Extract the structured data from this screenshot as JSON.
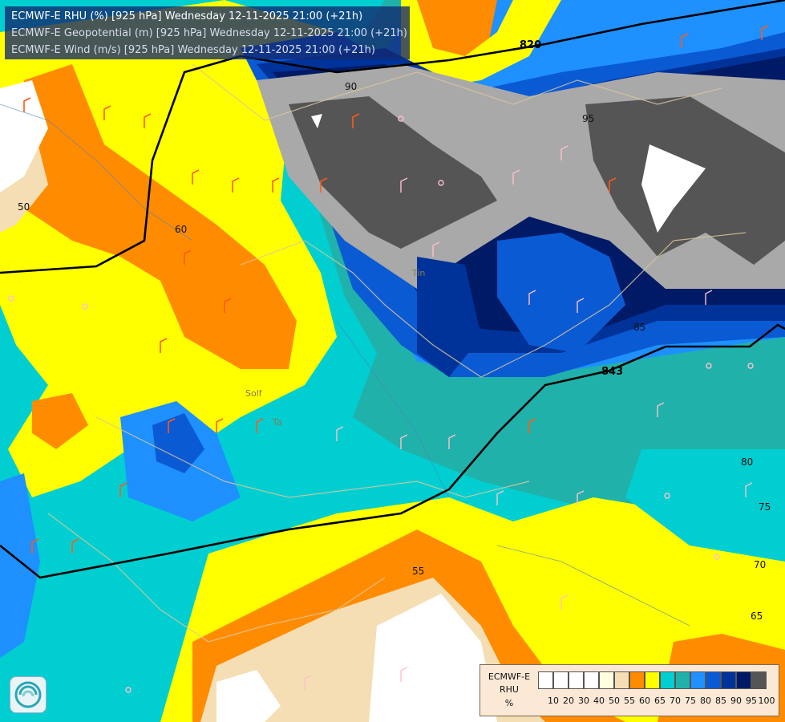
{
  "header": {
    "line1": "ECMWF-E RHU (%) [925 hPa] Wednesday 12-11-2025 21:00 (+21h)",
    "line2": "ECMWF-E Geopotential (m) [925 hPa] Wednesday 12-11-2025 21:00 (+21h)",
    "line3": "ECMWF-E Wind (m/s) [925 hPa] Wednesday 12-11-2025 21:00 (+21h)"
  },
  "legend": {
    "title1": "ECMWF-E",
    "title2": "RHU",
    "unit": "%",
    "bins": [
      {
        "label": "10",
        "color": "#ffffff"
      },
      {
        "label": "20",
        "color": "#ffffff"
      },
      {
        "label": "30",
        "color": "#ffffff"
      },
      {
        "label": "40",
        "color": "#ffffff"
      },
      {
        "label": "50",
        "color": "#ffffe0"
      },
      {
        "label": "55",
        "color": "#f5deb3"
      },
      {
        "label": "60",
        "color": "#ff8c00"
      },
      {
        "label": "65",
        "color": "#ffff00"
      },
      {
        "label": "70",
        "color": "#00ced1"
      },
      {
        "label": "75",
        "color": "#20b2aa"
      },
      {
        "label": "80",
        "color": "#1e90ff"
      },
      {
        "label": "85",
        "color": "#0a5ad4"
      },
      {
        "label": "90",
        "color": "#003399"
      },
      {
        "label": "95",
        "color": "#001a66"
      },
      {
        "label": "100",
        "color": "#a9a9a9"
      }
    ],
    "top_color": "#555555"
  },
  "contour_labels": {
    "geopotential": [
      "820",
      "843"
    ],
    "rhu": [
      "95",
      "90",
      "85",
      "80",
      "75",
      "70",
      "65",
      "60",
      "55",
      "50"
    ]
  },
  "place_labels": [
    "Solf",
    "Ta",
    "Tin"
  ],
  "logo": "ecmwf-logo-icon"
}
